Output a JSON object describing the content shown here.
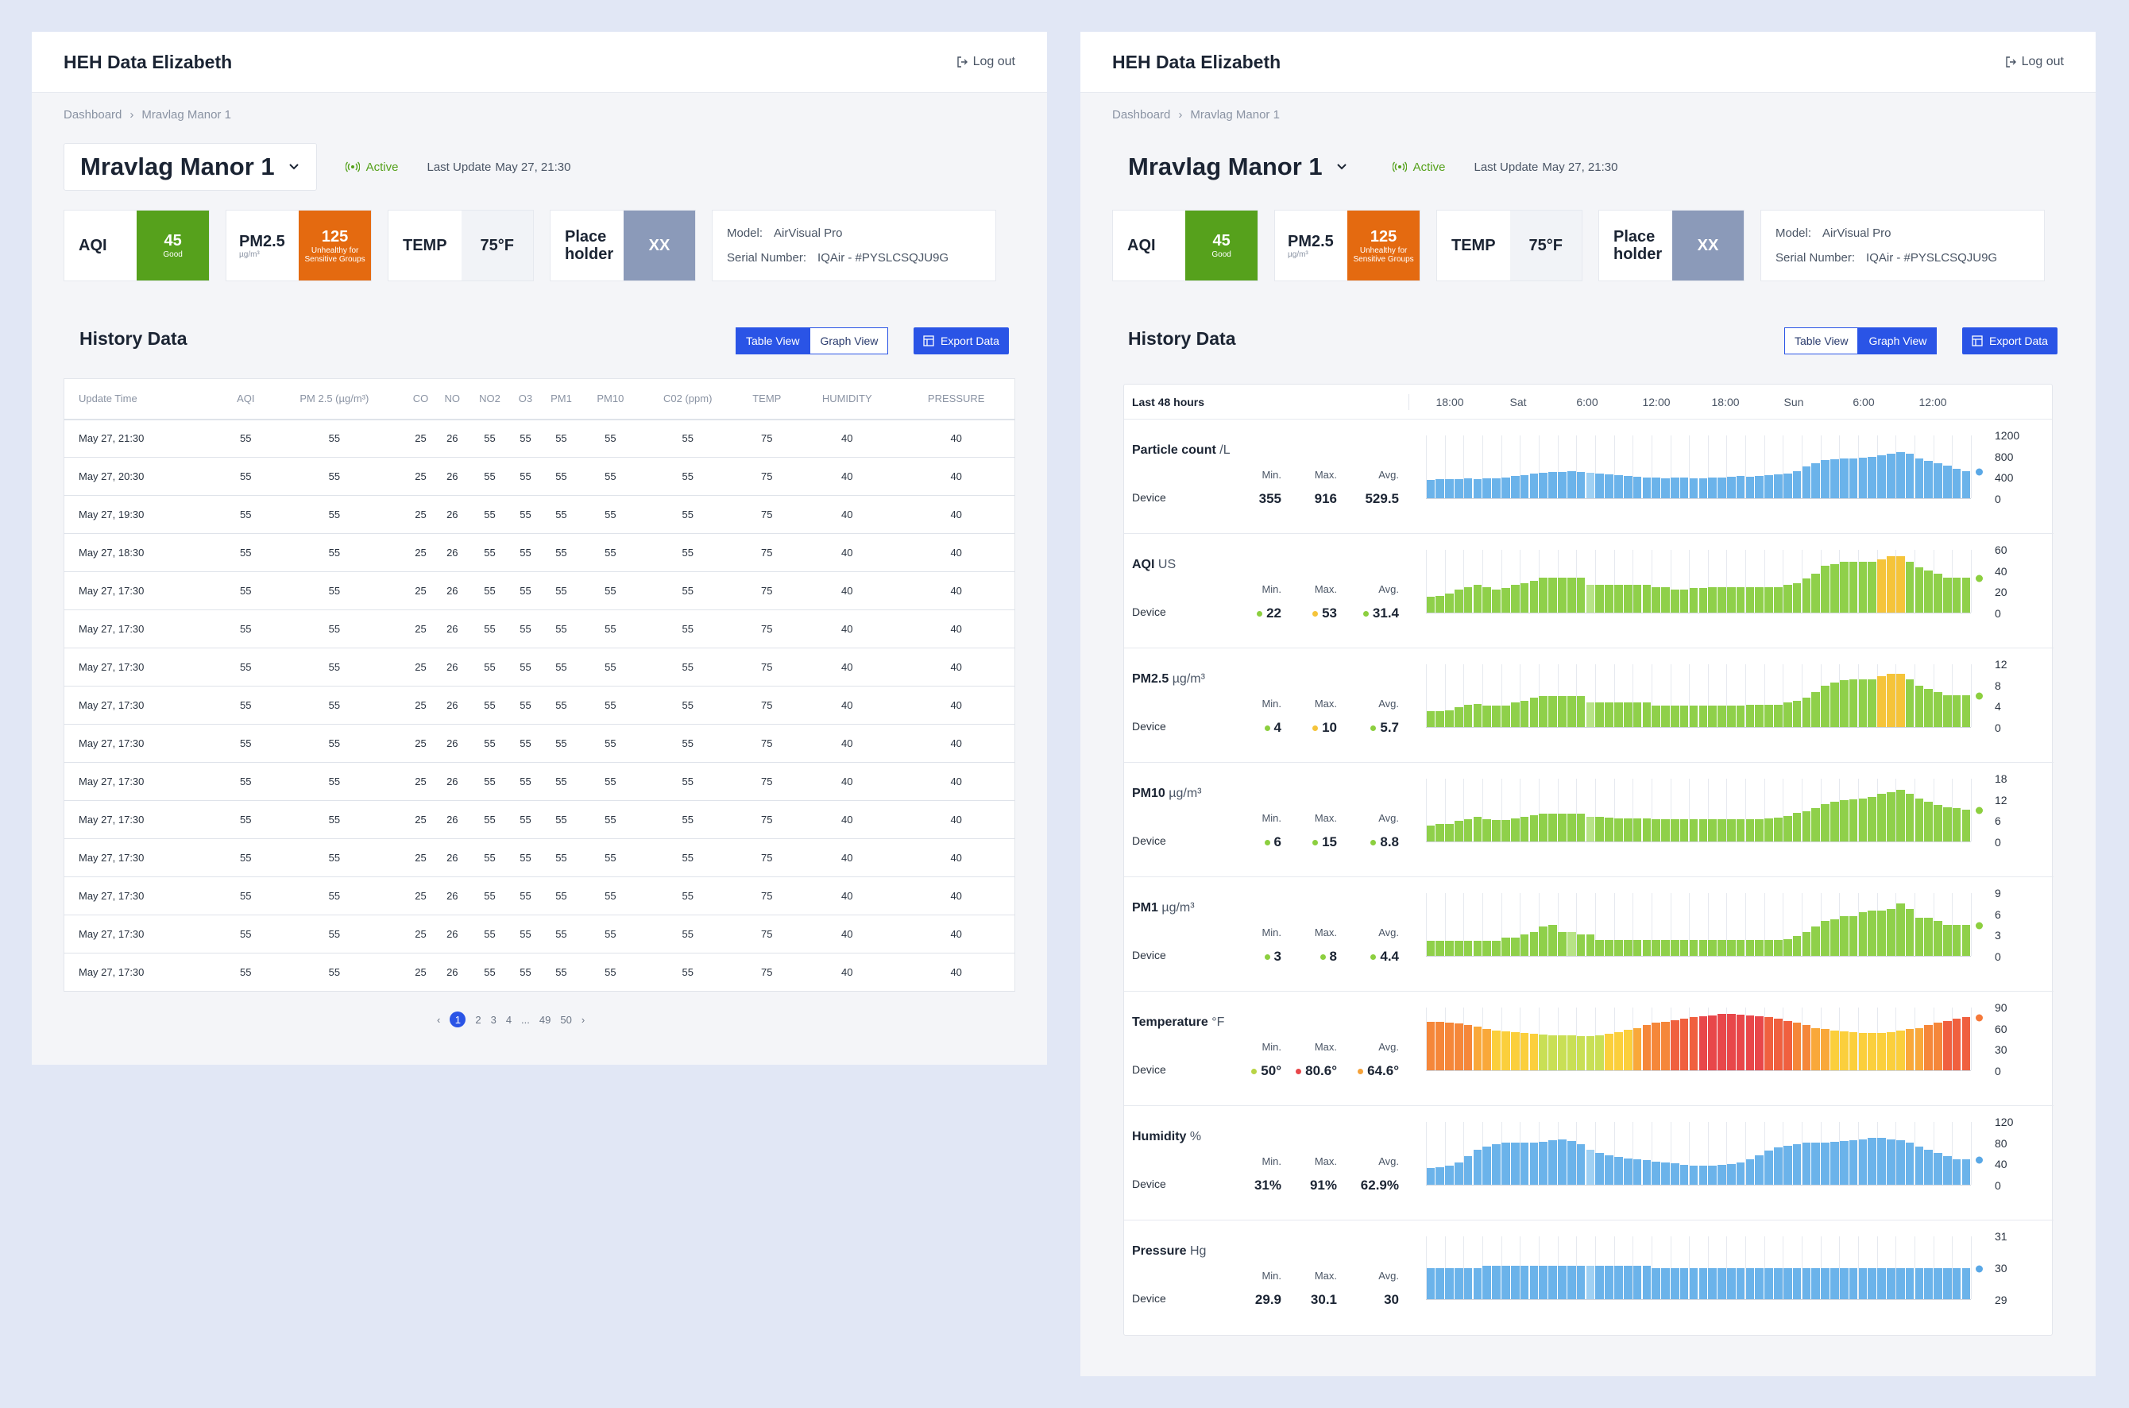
{
  "brand": "HEH Data Elizabeth",
  "logout": "Log out",
  "breadcrumb": {
    "root": "Dashboard",
    "current": "Mravlag Manor 1"
  },
  "device": {
    "name": "Mravlag Manor 1",
    "status": "Active",
    "last_update_label": "Last Update",
    "last_update": "May 27, 21:30"
  },
  "cards": {
    "aqi": {
      "label": "AQI",
      "value": "45",
      "sub": "Good",
      "color": "#56a11c"
    },
    "pm25": {
      "label": "PM2.5",
      "unit": "µg/m³",
      "value": "125",
      "sub": "Unhealthy for Sensitive Groups",
      "color": "#e46a10"
    },
    "temp": {
      "label": "TEMP",
      "value": "75°F"
    },
    "place": {
      "label": "Place holder",
      "value": "XX",
      "color": "#8b9ab9"
    },
    "model": {
      "model_label": "Model:",
      "model": "AirVisual Pro",
      "serial_label": "Serial Number:",
      "serial": "IQAir - #PYSLCSQJU9G"
    }
  },
  "history": {
    "title": "History Data",
    "table_view": "Table View",
    "graph_view": "Graph View",
    "export": "Export Data"
  },
  "table": {
    "headers": [
      "Update Time",
      "AQI",
      "PM 2.5 (µg/m³)",
      "CO",
      "NO",
      "NO2",
      "O3",
      "PM1",
      "PM10",
      "C02 (ppm)",
      "TEMP",
      "HUMIDITY",
      "PRESSURE"
    ],
    "rows": [
      [
        "May 27, 21:30",
        "55",
        "55",
        "25",
        "26",
        "55",
        "55",
        "55",
        "55",
        "55",
        "75",
        "40",
        "40"
      ],
      [
        "May 27, 20:30",
        "55",
        "55",
        "25",
        "26",
        "55",
        "55",
        "55",
        "55",
        "55",
        "75",
        "40",
        "40"
      ],
      [
        "May 27, 19:30",
        "55",
        "55",
        "25",
        "26",
        "55",
        "55",
        "55",
        "55",
        "55",
        "75",
        "40",
        "40"
      ],
      [
        "May 27, 18:30",
        "55",
        "55",
        "25",
        "26",
        "55",
        "55",
        "55",
        "55",
        "55",
        "75",
        "40",
        "40"
      ],
      [
        "May 27, 17:30",
        "55",
        "55",
        "25",
        "26",
        "55",
        "55",
        "55",
        "55",
        "55",
        "75",
        "40",
        "40"
      ],
      [
        "May 27, 17:30",
        "55",
        "55",
        "25",
        "26",
        "55",
        "55",
        "55",
        "55",
        "55",
        "75",
        "40",
        "40"
      ],
      [
        "May 27, 17:30",
        "55",
        "55",
        "25",
        "26",
        "55",
        "55",
        "55",
        "55",
        "55",
        "75",
        "40",
        "40"
      ],
      [
        "May 27, 17:30",
        "55",
        "55",
        "25",
        "26",
        "55",
        "55",
        "55",
        "55",
        "55",
        "75",
        "40",
        "40"
      ],
      [
        "May 27, 17:30",
        "55",
        "55",
        "25",
        "26",
        "55",
        "55",
        "55",
        "55",
        "55",
        "75",
        "40",
        "40"
      ],
      [
        "May 27, 17:30",
        "55",
        "55",
        "25",
        "26",
        "55",
        "55",
        "55",
        "55",
        "55",
        "75",
        "40",
        "40"
      ],
      [
        "May 27, 17:30",
        "55",
        "55",
        "25",
        "26",
        "55",
        "55",
        "55",
        "55",
        "55",
        "75",
        "40",
        "40"
      ],
      [
        "May 27, 17:30",
        "55",
        "55",
        "25",
        "26",
        "55",
        "55",
        "55",
        "55",
        "55",
        "75",
        "40",
        "40"
      ],
      [
        "May 27, 17:30",
        "55",
        "55",
        "25",
        "26",
        "55",
        "55",
        "55",
        "55",
        "55",
        "75",
        "40",
        "40"
      ],
      [
        "May 27, 17:30",
        "55",
        "55",
        "25",
        "26",
        "55",
        "55",
        "55",
        "55",
        "55",
        "75",
        "40",
        "40"
      ],
      [
        "May 27, 17:30",
        "55",
        "55",
        "25",
        "26",
        "55",
        "55",
        "55",
        "55",
        "55",
        "75",
        "40",
        "40"
      ]
    ]
  },
  "pagination": [
    "1",
    "2",
    "3",
    "4",
    "...",
    "49",
    "50"
  ],
  "graph": {
    "range_label": "Last 48 hours",
    "x_ticks": [
      "18:00",
      "Sat",
      "6:00",
      "12:00",
      "18:00",
      "Sun",
      "6:00",
      "12:00"
    ],
    "device_label": "Device",
    "min_label": "Min.",
    "max_label": "Max.",
    "avg_label": "Avg.",
    "metrics": [
      {
        "name": "Particle count",
        "unit": "/L",
        "min": "355",
        "max": "916",
        "avg": "529.5",
        "min_color": "",
        "max_color": "",
        "avg_color": "",
        "yticks": [
          "1200",
          "800",
          "400",
          "0"
        ],
        "ymax": 1200,
        "latest_color": "#5aa8e6",
        "palette": "blue",
        "values": [
          340,
          355,
          360,
          355,
          370,
          365,
          380,
          375,
          395,
          415,
          440,
          460,
          480,
          490,
          500,
          505,
          490,
          480,
          465,
          455,
          440,
          425,
          405,
          395,
          385,
          380,
          390,
          385,
          380,
          375,
          385,
          390,
          405,
          415,
          410,
          420,
          435,
          445,
          465,
          515,
          595,
          665,
          715,
          735,
          745,
          755,
          765,
          785,
          815,
          845,
          875,
          835,
          755,
          705,
          665,
          615,
          555,
          515
        ]
      },
      {
        "name": "AQI",
        "unit": "US",
        "min": "22",
        "max": "53",
        "avg": "31.4",
        "min_color": "#8ccf3f",
        "max_color": "#f5c43a",
        "avg_color": "#8ccf3f",
        "yticks": [
          "60",
          "40",
          "20",
          "0"
        ],
        "ymax": 60,
        "latest_color": "#8ccf3f",
        "palette": "aqi",
        "values": [
          15,
          16,
          18,
          22,
          24,
          26,
          24,
          22,
          23,
          26,
          28,
          30,
          33,
          33,
          33,
          33,
          33,
          26,
          26,
          26,
          26,
          26,
          26,
          26,
          24,
          24,
          22,
          22,
          23,
          23,
          24,
          24,
          24,
          24,
          24,
          24,
          24,
          24,
          26,
          28,
          32,
          37,
          44,
          46,
          48,
          48,
          48,
          48,
          50,
          53,
          53,
          48,
          43,
          40,
          37,
          33,
          33,
          33
        ]
      },
      {
        "name": "PM2.5",
        "unit": "µg/m³",
        "min": "4",
        "max": "10",
        "avg": "5.7",
        "min_color": "#8ccf3f",
        "max_color": "#f5c43a",
        "avg_color": "#8ccf3f",
        "yticks": [
          "12",
          "8",
          "4",
          "0"
        ],
        "ymax": 12,
        "latest_color": "#8ccf3f",
        "palette": "pm25",
        "values": [
          3.0,
          3.0,
          3.2,
          3.8,
          4.2,
          4.4,
          4.0,
          4.0,
          4.0,
          4.6,
          5.0,
          5.5,
          5.8,
          5.8,
          5.8,
          5.8,
          5.8,
          4.6,
          4.6,
          4.6,
          4.6,
          4.6,
          4.6,
          4.6,
          4.0,
          4.0,
          4.0,
          4.0,
          4.0,
          4.0,
          4.0,
          4.0,
          4.0,
          4.0,
          4.2,
          4.2,
          4.2,
          4.2,
          4.6,
          5.0,
          5.6,
          6.6,
          7.8,
          8.4,
          8.8,
          9.0,
          9.0,
          9.0,
          9.6,
          10.0,
          10.0,
          9.0,
          7.8,
          7.2,
          6.6,
          6.0,
          6.0,
          6.0
        ]
      },
      {
        "name": "PM10",
        "unit": "µg/m³",
        "min": "6",
        "max": "15",
        "avg": "8.8",
        "min_color": "#8ccf3f",
        "max_color": "#8ccf3f",
        "avg_color": "#8ccf3f",
        "yticks": [
          "18",
          "12",
          "6",
          "0"
        ],
        "ymax": 18,
        "latest_color": "#8ccf3f",
        "palette": "pm10",
        "values": [
          4.5,
          5.0,
          5.0,
          5.8,
          6.4,
          7.0,
          6.2,
          6.0,
          6.0,
          6.6,
          7.0,
          7.4,
          7.8,
          7.8,
          7.8,
          7.8,
          7.8,
          7.0,
          7.0,
          6.8,
          6.6,
          6.6,
          6.6,
          6.6,
          6.2,
          6.2,
          6.2,
          6.2,
          6.2,
          6.2,
          6.2,
          6.2,
          6.2,
          6.2,
          6.4,
          6.4,
          6.6,
          6.8,
          7.2,
          8.0,
          8.6,
          9.4,
          10.6,
          11.2,
          11.8,
          12.0,
          12.2,
          12.6,
          13.4,
          14.0,
          14.6,
          13.4,
          12.2,
          11.2,
          10.4,
          9.6,
          9.4,
          9.0
        ]
      },
      {
        "name": "PM1",
        "unit": "µg/m³",
        "min": "3",
        "max": "8",
        "avg": "4.4",
        "min_color": "#8ccf3f",
        "max_color": "#8ccf3f",
        "avg_color": "#8ccf3f",
        "yticks": [
          "9",
          "6",
          "3",
          "0"
        ],
        "ymax": 9,
        "latest_color": "#8ccf3f",
        "palette": "pm1",
        "values": [
          2.1,
          2.1,
          2.1,
          2.1,
          2.1,
          2.1,
          2.1,
          2.1,
          2.6,
          2.6,
          3.0,
          3.4,
          4.2,
          4.4,
          3.4,
          3.4,
          3.0,
          3.0,
          2.2,
          2.2,
          2.2,
          2.2,
          2.2,
          2.2,
          2.2,
          2.2,
          2.2,
          2.2,
          2.2,
          2.2,
          2.2,
          2.2,
          2.2,
          2.2,
          2.2,
          2.2,
          2.2,
          2.2,
          2.4,
          2.8,
          3.4,
          4.2,
          5.0,
          5.2,
          5.6,
          5.6,
          6.2,
          6.4,
          6.4,
          6.6,
          7.4,
          6.6,
          5.4,
          5.4,
          5.0,
          4.4,
          4.4,
          4.4
        ]
      },
      {
        "name": "Temperature",
        "unit": "°F",
        "min": "50°",
        "max": "80.6°",
        "avg": "64.6°",
        "min_color": "#b8d445",
        "max_color": "#e8474a",
        "avg_color": "#f5a23a",
        "yticks": [
          "90",
          "60",
          "30",
          "0"
        ],
        "ymax": 90,
        "latest_color": "#f5793a",
        "palette": "temp",
        "values": [
          69,
          69,
          68,
          66,
          64,
          62,
          58,
          56,
          55,
          54,
          53,
          52,
          51,
          50,
          50,
          49,
          48,
          48,
          50,
          52,
          54,
          57,
          60,
          64,
          67,
          69,
          71,
          73,
          75,
          77,
          78,
          80,
          80,
          79,
          78,
          77,
          75,
          73,
          70,
          67,
          64,
          60,
          58,
          56,
          55,
          54,
          53,
          53,
          53,
          54,
          56,
          58,
          60,
          64,
          67,
          70,
          73,
          75
        ]
      },
      {
        "name": "Humidity",
        "unit": "%",
        "min": "31%",
        "max": "91%",
        "avg": "62.9%",
        "min_color": "",
        "max_color": "",
        "avg_color": "",
        "yticks": [
          "120",
          "80",
          "40",
          "0"
        ],
        "ymax": 120,
        "latest_color": "#5aa8e6",
        "palette": "blue",
        "values": [
          32,
          33,
          36,
          42,
          54,
          66,
          72,
          76,
          79,
          80,
          80,
          80,
          81,
          84,
          85,
          82,
          76,
          66,
          60,
          56,
          52,
          50,
          48,
          46,
          44,
          42,
          40,
          38,
          36,
          36,
          36,
          37,
          39,
          42,
          48,
          56,
          64,
          70,
          74,
          77,
          79,
          79,
          80,
          81,
          82,
          84,
          86,
          88,
          88,
          86,
          84,
          79,
          72,
          66,
          60,
          54,
          48,
          48
        ]
      },
      {
        "name": "Pressure",
        "unit": "Hg",
        "min": "29.9",
        "max": "30.1",
        "avg": "30",
        "min_color": "",
        "max_color": "",
        "avg_color": "",
        "yticks": [
          "31",
          "30",
          "29"
        ],
        "ymax": 31,
        "ymin": 29,
        "latest_color": "#5aa8e6",
        "palette": "blue",
        "values": [
          29.98,
          29.98,
          29.98,
          29.98,
          29.98,
          29.98,
          30.04,
          30.04,
          30.04,
          30.04,
          30.04,
          30.04,
          30.04,
          30.04,
          30.04,
          30.04,
          30.04,
          30.04,
          30.04,
          30.04,
          30.04,
          30.04,
          30.04,
          30.04,
          29.98,
          29.98,
          29.98,
          29.98,
          29.98,
          29.98,
          29.98,
          29.98,
          29.98,
          29.98,
          29.98,
          29.98,
          29.98,
          29.98,
          29.98,
          29.98,
          29.98,
          29.98,
          29.98,
          29.98,
          29.98,
          29.98,
          29.98,
          29.98,
          29.98,
          29.98,
          29.98,
          29.98,
          29.98,
          29.98,
          29.98,
          29.98,
          29.98,
          29.98
        ]
      }
    ]
  }
}
